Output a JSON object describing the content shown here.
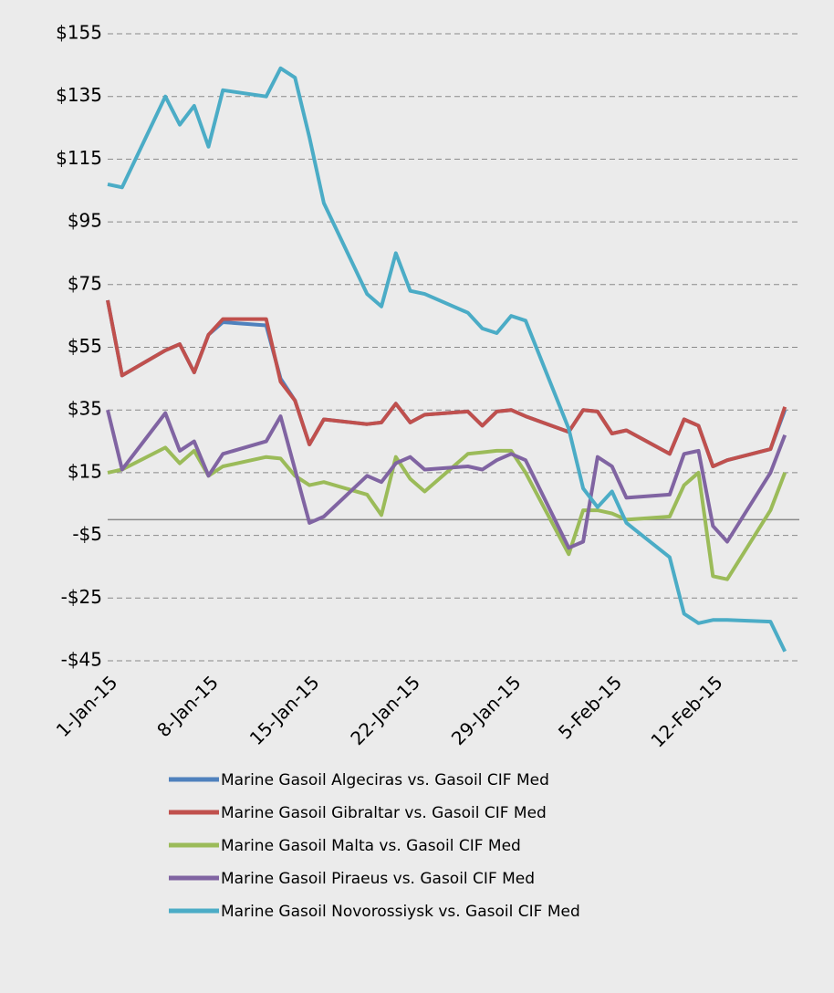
{
  "chart_data": {
    "type": "line",
    "x": [
      "2015-01-01",
      "2015-01-02",
      "2015-01-05",
      "2015-01-06",
      "2015-01-07",
      "2015-01-08",
      "2015-01-09",
      "2015-01-12",
      "2015-01-13",
      "2015-01-14",
      "2015-01-15",
      "2015-01-16",
      "2015-01-19",
      "2015-01-20",
      "2015-01-21",
      "2015-01-22",
      "2015-01-23",
      "2015-01-26",
      "2015-01-27",
      "2015-01-28",
      "2015-01-29",
      "2015-01-30",
      "2015-02-02",
      "2015-02-03",
      "2015-02-04",
      "2015-02-05",
      "2015-02-06",
      "2015-02-09",
      "2015-02-10",
      "2015-02-11",
      "2015-02-12",
      "2015-02-13",
      "2015-02-16",
      "2015-02-17"
    ],
    "series": [
      {
        "name": "Marine Gasoil Algeciras vs. Gasoil  CIF Med",
        "color": "#4f81bd",
        "values": [
          70,
          46,
          54,
          56,
          47,
          59,
          63,
          62,
          45,
          38,
          24,
          32,
          30.5,
          31,
          37,
          31,
          33.5,
          34.5,
          30,
          34.5,
          35,
          33,
          28,
          35,
          34.5,
          27.5,
          28.5,
          21,
          32,
          30,
          17,
          19,
          22.5,
          35
        ]
      },
      {
        "name": "Marine Gasoil Gibraltar vs. Gasoil  CIF Med",
        "color": "#c0504d",
        "values": [
          70,
          46,
          54,
          56,
          47,
          59,
          64,
          64,
          44,
          38,
          24,
          32,
          30.5,
          31,
          37,
          31,
          33.5,
          34.5,
          30,
          34.5,
          35,
          33,
          28,
          35,
          34.5,
          27.5,
          28.5,
          21,
          32,
          30,
          17,
          19,
          22.5,
          36
        ]
      },
      {
        "name": "Marine Gasoil Malta vs. Gasoil  CIF Med",
        "color": "#9bbb59",
        "values": [
          15,
          16,
          23,
          18,
          22,
          14,
          17,
          20,
          19.5,
          14,
          11,
          12,
          8,
          1.5,
          20,
          13,
          9,
          21,
          21.5,
          22,
          22,
          15,
          -11,
          3,
          3,
          2,
          0,
          1,
          11,
          15,
          -18,
          -19,
          3,
          15
        ]
      },
      {
        "name": "Marine Gasoil Piraeus vs. Gasoil  CIF Med",
        "color": "#8064a2",
        "values": [
          35,
          16,
          34,
          22,
          25,
          14,
          21,
          25,
          33,
          16,
          -1,
          1,
          14,
          12,
          18,
          20,
          16,
          17,
          16,
          19,
          21,
          19,
          -9,
          -7,
          20,
          17,
          7,
          8,
          21,
          22,
          -2,
          -7,
          15,
          27
        ]
      },
      {
        "name": "Marine Gasoil Novorossiysk vs. Gasoil  CIF Med",
        "color": "#4bacc6",
        "values": [
          107,
          106,
          135,
          126,
          132,
          119,
          137,
          135,
          144,
          141,
          122,
          101,
          72,
          68,
          85,
          73,
          72,
          66,
          61,
          59.5,
          65,
          63.5,
          29,
          10,
          4,
          9,
          -1,
          -12,
          -30,
          -33,
          -32,
          -32,
          -32.5,
          -42
        ]
      }
    ],
    "xlim": [
      "2015-01-01",
      "2015-02-18"
    ],
    "xticks": [
      {
        "value": "2015-01-01",
        "label": "1-Jan-15"
      },
      {
        "value": "2015-01-08",
        "label": "8-Jan-15"
      },
      {
        "value": "2015-01-15",
        "label": "15-Jan-15"
      },
      {
        "value": "2015-01-22",
        "label": "22-Jan-15"
      },
      {
        "value": "2015-01-29",
        "label": "29-Jan-15"
      },
      {
        "value": "2015-02-05",
        "label": "5-Feb-15"
      },
      {
        "value": "2015-02-12",
        "label": "12-Feb-15"
      }
    ],
    "ylim": [
      -45,
      155
    ],
    "yticks": [
      {
        "value": -45,
        "label": "-$45"
      },
      {
        "value": -25,
        "label": "-$25"
      },
      {
        "value": -5,
        "label": "-$5"
      },
      {
        "value": 15,
        "label": "$15"
      },
      {
        "value": 35,
        "label": "$35"
      },
      {
        "value": 55,
        "label": "$55"
      },
      {
        "value": 75,
        "label": "$75"
      },
      {
        "value": 95,
        "label": "$95"
      },
      {
        "value": 115,
        "label": "$115"
      },
      {
        "value": 135,
        "label": "$135"
      },
      {
        "value": 155,
        "label": "$155"
      }
    ],
    "grid": true,
    "legend": "bottom"
  }
}
